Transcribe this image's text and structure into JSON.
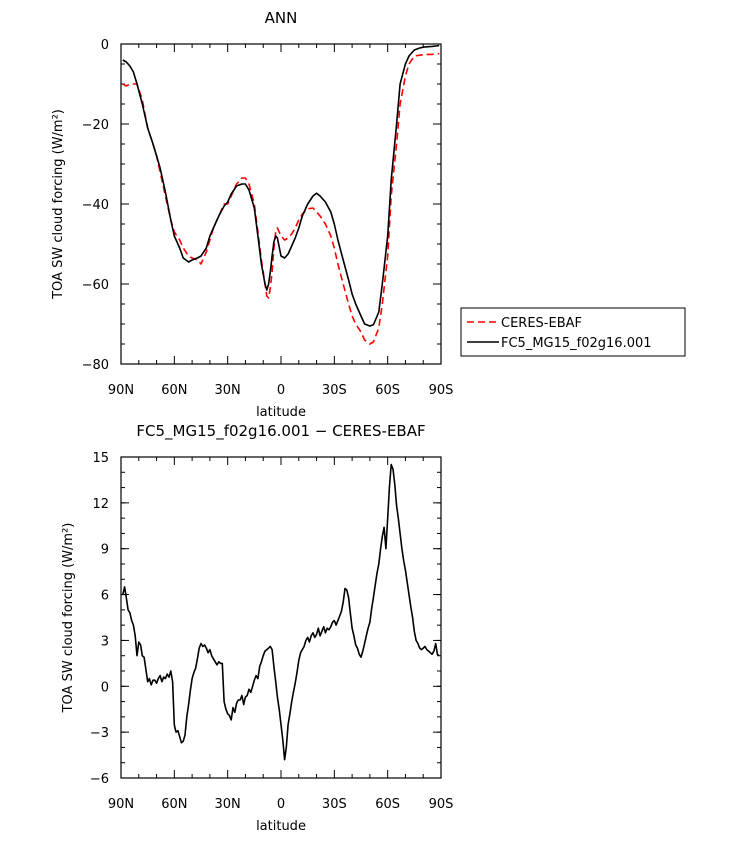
{
  "chart_data": [
    {
      "type": "line",
      "title": "ANN",
      "xlabel": "latitude",
      "ylabel": "TOA SW cloud forcing (W/m²)",
      "x_ticks": [
        "90N",
        "60N",
        "30N",
        "0",
        "30S",
        "60S",
        "90S"
      ],
      "x_tick_values": [
        90,
        60,
        30,
        0,
        -30,
        -60,
        -90
      ],
      "y_ticks": [
        "0",
        "−20",
        "−40",
        "−60",
        "−80"
      ],
      "xlim": [
        90,
        -90
      ],
      "ylim": [
        -80,
        0
      ],
      "legend": {
        "placement": "right",
        "entries": [
          "CERES-EBAF",
          "FC5_MG15_f02g16.001"
        ]
      },
      "series": [
        {
          "name": "CERES-EBAF",
          "color": "#ff0000",
          "dash": "dashed",
          "x": [
            89,
            87,
            85,
            83,
            81,
            78,
            75,
            72,
            70,
            68,
            65,
            62,
            60,
            57,
            55,
            52,
            50,
            47,
            45,
            42,
            40,
            38,
            35,
            32,
            30,
            28,
            25,
            22,
            20,
            18,
            15,
            13,
            11,
            9,
            8,
            7,
            6,
            5,
            4,
            3,
            2,
            0,
            -2,
            -4,
            -6,
            -8,
            -10,
            -12,
            -15,
            -18,
            -20,
            -22,
            -25,
            -28,
            -30,
            -32,
            -35,
            -38,
            -40,
            -42,
            -45,
            -47,
            -50,
            -52,
            -55,
            -57,
            -60,
            -62,
            -65,
            -67,
            -70,
            -72,
            -75,
            -78,
            -80,
            -82,
            -85,
            -87,
            -89
          ],
          "y": [
            -10,
            -10.5,
            -10,
            -10,
            -10,
            -14,
            -21,
            -25,
            -28,
            -32,
            -38,
            -44,
            -47,
            -49,
            -51,
            -53,
            -53.5,
            -54,
            -55,
            -52,
            -49,
            -46,
            -43,
            -40,
            -40,
            -38,
            -35,
            -33.5,
            -33.5,
            -35,
            -40,
            -47,
            -54,
            -60,
            -63,
            -63.5,
            -61,
            -57,
            -51,
            -47,
            -46,
            -48,
            -49,
            -48.5,
            -47.5,
            -46,
            -44,
            -42.5,
            -41.2,
            -41,
            -42,
            -43,
            -45,
            -48,
            -51,
            -55,
            -60,
            -65,
            -68,
            -70,
            -72,
            -74,
            -75,
            -74.5,
            -71,
            -65,
            -53,
            -38,
            -25,
            -15,
            -8,
            -5,
            -3,
            -2.8,
            -2.7,
            -2.6,
            -2.6,
            -2.5,
            -2.4
          ]
        },
        {
          "name": "FC5_MG15_f02g16.001",
          "color": "#000000",
          "dash": "solid",
          "x": [
            89,
            87,
            85,
            83,
            81,
            78,
            75,
            72,
            70,
            68,
            65,
            62,
            60,
            57,
            55,
            52,
            50,
            47,
            45,
            42,
            40,
            38,
            35,
            32,
            30,
            28,
            25,
            22,
            20,
            18,
            15,
            13,
            11,
            9,
            8,
            7,
            6,
            5,
            4,
            3,
            2,
            0,
            -2,
            -4,
            -6,
            -8,
            -10,
            -12,
            -15,
            -18,
            -20,
            -22,
            -25,
            -28,
            -30,
            -32,
            -35,
            -38,
            -40,
            -42,
            -45,
            -47,
            -50,
            -52,
            -55,
            -57,
            -60,
            -62,
            -65,
            -67,
            -70,
            -72,
            -75,
            -78,
            -80,
            -82,
            -85,
            -87,
            -89
          ],
          "y": [
            -4,
            -4.5,
            -5.5,
            -7,
            -10,
            -15,
            -21,
            -25,
            -28,
            -31,
            -37,
            -44,
            -48,
            -51,
            -53.5,
            -54.5,
            -54,
            -53.5,
            -53,
            -51,
            -48,
            -46,
            -43,
            -40.5,
            -39.5,
            -37.5,
            -35.5,
            -35,
            -35,
            -36.5,
            -41,
            -48,
            -55,
            -60,
            -61.5,
            -60,
            -57,
            -53,
            -49.5,
            -48,
            -48.5,
            -53,
            -53.5,
            -52.5,
            -50.5,
            -48.5,
            -46,
            -43,
            -40,
            -38,
            -37.3,
            -38,
            -39.5,
            -42,
            -45,
            -49,
            -54,
            -59,
            -62.5,
            -65,
            -68,
            -70,
            -70.5,
            -70.2,
            -67,
            -60,
            -48,
            -34,
            -20,
            -10,
            -5,
            -3,
            -1.5,
            -1,
            -0.8,
            -0.7,
            -0.6,
            -0.5,
            -0.4
          ]
        }
      ]
    },
    {
      "type": "line",
      "title": "FC5_MG15_f02g16.001 − CERES-EBAF",
      "xlabel": "latitude",
      "ylabel": "TOA SW cloud forcing (W/m²)",
      "x_ticks": [
        "90N",
        "60N",
        "30N",
        "0",
        "30S",
        "60S",
        "90S"
      ],
      "x_tick_values": [
        90,
        60,
        30,
        0,
        -30,
        -60,
        -90
      ],
      "y_ticks": [
        "15",
        "12",
        "9",
        "6",
        "3",
        "0",
        "−3",
        "−6"
      ],
      "xlim": [
        90,
        -90
      ],
      "ylim": [
        -6,
        15
      ],
      "series": [
        {
          "color": "#000000",
          "dash": "solid",
          "x": [
            89,
            88,
            87,
            86,
            85,
            84,
            83,
            82,
            81,
            80,
            79,
            78,
            77,
            76,
            75,
            74,
            73,
            72,
            71,
            70,
            69,
            68,
            67,
            66,
            65,
            64,
            63,
            62,
            61,
            60,
            59.5,
            59,
            58,
            57,
            56,
            55,
            54,
            53,
            52,
            51,
            50,
            49,
            48,
            47,
            46,
            45,
            44,
            43,
            42,
            41,
            40,
            39,
            38,
            37,
            36,
            35,
            34,
            33,
            32,
            31,
            30,
            29,
            28,
            27,
            26,
            25,
            24,
            23,
            22,
            21,
            20,
            19,
            18,
            17,
            16,
            15,
            14,
            13,
            12,
            11,
            10,
            9,
            8,
            7,
            6,
            5,
            4,
            3,
            2,
            1,
            0,
            -1,
            -2,
            -3,
            -4,
            -5,
            -6,
            -7,
            -8,
            -9,
            -10,
            -11,
            -12,
            -13,
            -14,
            -15,
            -16,
            -17,
            -18,
            -19,
            -20,
            -21,
            -22,
            -23,
            -24,
            -25,
            -26,
            -27,
            -28,
            -29,
            -30,
            -31,
            -32,
            -33,
            -34,
            -35,
            -36,
            -37,
            -38,
            -39,
            -40,
            -41,
            -42,
            -43,
            -44,
            -45,
            -46,
            -47,
            -48,
            -49,
            -50,
            -51,
            -52,
            -53,
            -54,
            -55,
            -56,
            -57,
            -58,
            -59,
            -60,
            -61,
            -62,
            -63,
            -64,
            -65,
            -66,
            -67,
            -68,
            -69,
            -70,
            -71,
            -72,
            -73,
            -74,
            -75,
            -76,
            -77,
            -78,
            -79,
            -80,
            -81,
            -82,
            -83,
            -84,
            -85,
            -86,
            -87,
            -88,
            -89
          ],
          "y": [
            6,
            6.5,
            5.8,
            5.0,
            4.8,
            4.3,
            4.0,
            3.3,
            2.0,
            2.9,
            2.7,
            2.0,
            1.9,
            1.1,
            0.3,
            0.5,
            0.1,
            0.4,
            0.4,
            0.2,
            0.5,
            0.7,
            0.3,
            0.6,
            0.5,
            0.8,
            0.6,
            1.0,
            0.3,
            -2.5,
            -2.8,
            -3.0,
            -2.9,
            -3.3,
            -3.7,
            -3.6,
            -3.2,
            -2.0,
            -1.2,
            -0.3,
            0.5,
            0.9,
            1.2,
            1.8,
            2.5,
            2.8,
            2.6,
            2.7,
            2.5,
            2.2,
            2.4,
            2.0,
            1.8,
            1.6,
            1.4,
            1.6,
            1.5,
            1.5,
            -1.0,
            -1.5,
            -1.8,
            -1.9,
            -2.2,
            -1.4,
            -1.7,
            -1.1,
            -0.9,
            -0.9,
            -0.6,
            -1.2,
            -0.7,
            -0.6,
            -0.2,
            -0.4,
            0.0,
            0.4,
            0.7,
            0.5,
            1.3,
            1.6,
            2.0,
            2.3,
            2.4,
            2.5,
            2.6,
            2.4,
            1.3,
            0.3,
            -0.7,
            -1.5,
            -2.5,
            -3.5,
            -4.8,
            -4.0,
            -2.5,
            -1.8,
            -1.0,
            -0.4,
            0.2,
            0.9,
            1.7,
            2.2,
            2.4,
            2.6,
            3.0,
            3.2,
            2.9,
            3.3,
            3.5,
            3.2,
            3.4,
            3.8,
            3.3,
            3.6,
            3.9,
            3.5,
            3.8,
            3.7,
            3.9,
            4.2,
            4.3,
            4.0,
            4.3,
            4.6,
            4.9,
            5.5,
            6.4,
            6.3,
            5.8,
            4.8,
            3.8,
            3.3,
            2.7,
            2.5,
            2.1,
            1.9,
            2.3,
            2.8,
            3.3,
            3.8,
            4.2,
            5.1,
            5.8,
            6.6,
            7.4,
            8.0,
            9.0,
            9.8,
            10.4,
            9.0,
            11.0,
            13.0,
            14.5,
            14.2,
            13.2,
            11.8,
            11.0,
            10.0,
            9.0,
            8.2,
            7.6,
            6.8,
            6.0,
            5.2,
            4.5,
            3.6,
            3.0,
            2.8,
            2.5,
            2.4,
            2.5,
            2.6,
            2.4,
            2.3,
            2.2,
            2.1,
            2.3,
            2.8,
            2.1,
            2.0
          ]
        }
      ]
    }
  ]
}
